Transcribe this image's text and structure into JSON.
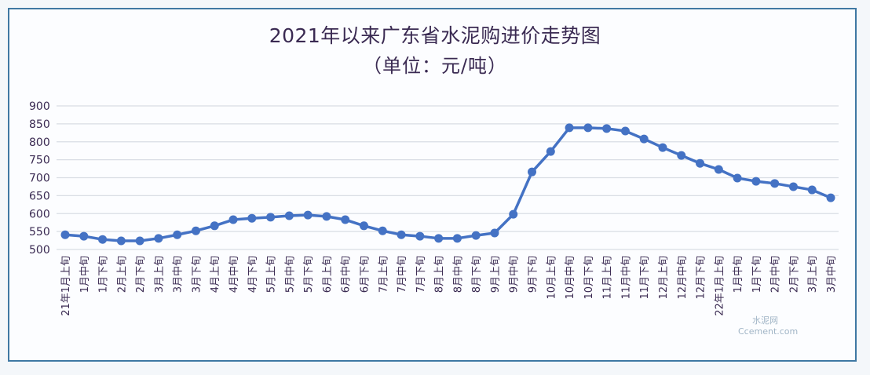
{
  "chart_data": {
    "type": "line",
    "title": "2021年以来广东省水泥购进价走势图",
    "subtitle": "（单位：元/吨）",
    "xlabel": "",
    "ylabel": "",
    "ylim": [
      500,
      900
    ],
    "yticks": [
      900,
      850,
      800,
      750,
      700,
      650,
      600,
      550,
      500
    ],
    "grid": true,
    "legend": null,
    "categories": [
      "21年1月上旬",
      "1月中旬",
      "1月下旬",
      "2月上旬",
      "2月下旬",
      "3月上旬",
      "3月中旬",
      "3月下旬",
      "4月上旬",
      "4月中旬",
      "4月下旬",
      "5月上旬",
      "5月中旬",
      "5月下旬",
      "6月上旬",
      "6月中旬",
      "6月下旬",
      "7月上旬",
      "7月中旬",
      "7月下旬",
      "8月上旬",
      "8月中旬",
      "8月下旬",
      "9月上旬",
      "9月中旬",
      "9月下旬",
      "10月上旬",
      "10月中旬",
      "10月下旬",
      "11月上旬",
      "11月中旬",
      "11月下旬",
      "12月上旬",
      "12月中旬",
      "12月下旬",
      "22年1月上旬",
      "1月中旬",
      "1月下旬",
      "2月中旬",
      "2月下旬",
      "3月上旬",
      "3月中旬"
    ],
    "series": [
      {
        "name": "广东省水泥购进价",
        "color": "#4472c4",
        "values": [
          541,
          537,
          528,
          524,
          524,
          531,
          541,
          552,
          566,
          583,
          587,
          590,
          594,
          596,
          592,
          583,
          566,
          552,
          541,
          537,
          531,
          531,
          539,
          546,
          598,
          716,
          773,
          839,
          839,
          837,
          830,
          808,
          784,
          762,
          740,
          723,
          699,
          690,
          684,
          675,
          666,
          644
        ]
      }
    ]
  },
  "watermark": {
    "cn": "水泥网",
    "en": "Ccement.com"
  },
  "colors": {
    "line": "#4472c4",
    "frame": "#3f78a3",
    "grid": "#d9dde4",
    "text": "#3a2a52"
  }
}
